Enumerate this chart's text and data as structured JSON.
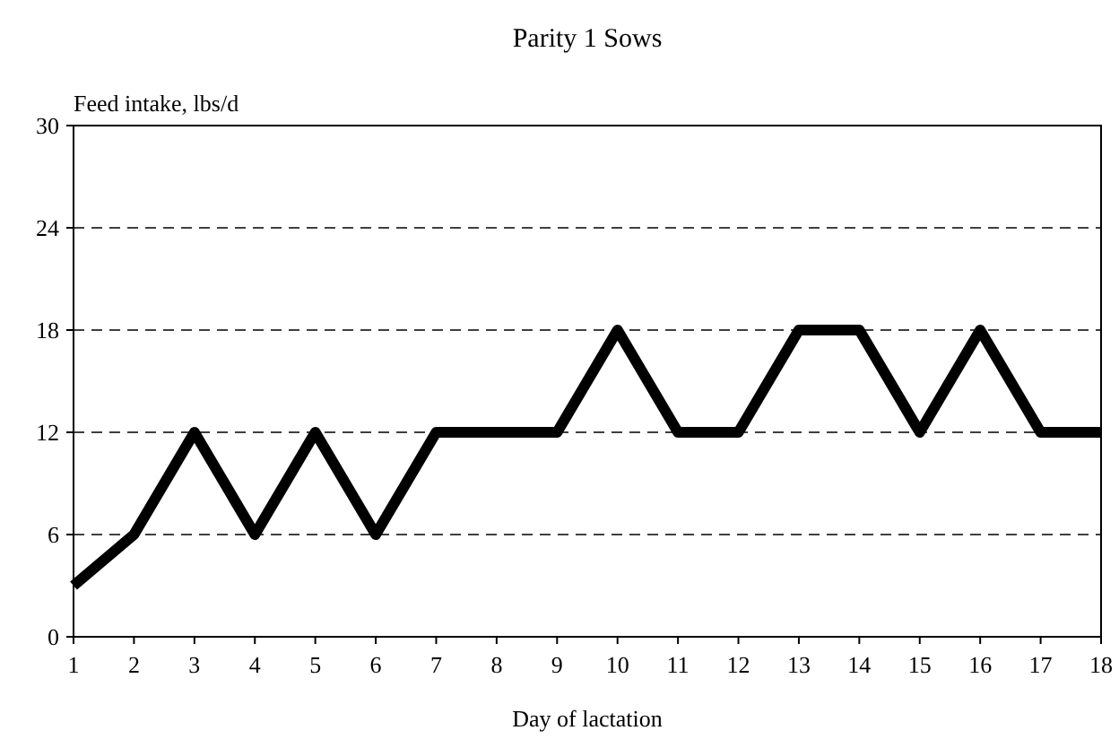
{
  "chart_data": {
    "type": "line",
    "title": "Parity 1 Sows",
    "xlabel": "Day of lactation",
    "ylabel": "Feed intake, lbs/d",
    "x": [
      1,
      2,
      3,
      4,
      5,
      6,
      7,
      8,
      9,
      10,
      11,
      12,
      13,
      14,
      15,
      16,
      17,
      18
    ],
    "series": [
      {
        "color": "#000000",
        "values": [
          3,
          6,
          12,
          6,
          12,
          6,
          12,
          12,
          12,
          18,
          12,
          12,
          18,
          18,
          12,
          18,
          12,
          12
        ]
      }
    ],
    "xlim": [
      1,
      18
    ],
    "xticks": [
      1,
      2,
      3,
      4,
      5,
      6,
      7,
      8,
      9,
      10,
      11,
      12,
      13,
      14,
      15,
      16,
      17,
      18
    ],
    "ylim": [
      0,
      30
    ],
    "yticks": [
      0,
      6,
      12,
      18,
      24,
      30
    ],
    "grid": "y",
    "marker": "none",
    "line_style": "solid"
  }
}
